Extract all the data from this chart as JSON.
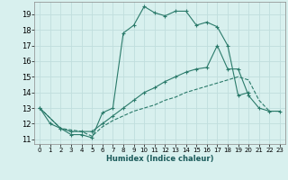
{
  "xlabel": "Humidex (Indice chaleur)",
  "bg_color": "#d8f0ee",
  "grid_color": "#c0dedd",
  "line_color": "#2a7a6a",
  "xlim": [
    -0.5,
    23.5
  ],
  "ylim": [
    10.7,
    19.8
  ],
  "yticks": [
    11,
    12,
    13,
    14,
    15,
    16,
    17,
    18,
    19
  ],
  "xticks": [
    0,
    1,
    2,
    3,
    4,
    5,
    6,
    7,
    8,
    9,
    10,
    11,
    12,
    13,
    14,
    15,
    16,
    17,
    18,
    19,
    20,
    21,
    22,
    23
  ],
  "lines": [
    {
      "x": [
        0,
        1,
        2,
        3,
        4,
        5,
        6,
        7,
        8,
        9,
        10,
        11,
        12,
        13,
        14,
        15,
        16,
        17,
        18,
        19,
        20
      ],
      "y": [
        13.0,
        12.0,
        11.7,
        11.3,
        11.3,
        11.1,
        12.7,
        13.0,
        17.8,
        18.3,
        19.5,
        19.1,
        18.9,
        19.2,
        19.2,
        18.3,
        18.5,
        18.2,
        17.0,
        13.8,
        14.0
      ],
      "style": "solid",
      "marker": true
    },
    {
      "x": [
        0,
        2,
        3,
        4,
        5,
        6,
        7,
        8,
        9,
        10,
        11,
        12,
        13,
        14,
        15,
        16,
        17,
        18,
        19,
        20,
        21,
        22,
        23
      ],
      "y": [
        13.0,
        11.7,
        11.5,
        11.5,
        11.5,
        12.0,
        12.5,
        13.0,
        13.5,
        14.0,
        14.3,
        14.7,
        15.0,
        15.3,
        15.5,
        15.6,
        17.0,
        15.5,
        15.5,
        13.8,
        13.0,
        12.8,
        12.8
      ],
      "style": "solid",
      "marker": true
    },
    {
      "x": [
        0,
        2,
        4,
        5,
        6,
        7,
        8,
        9,
        10,
        11,
        12,
        13,
        14,
        15,
        16,
        17,
        18,
        19,
        20,
        21,
        22,
        23
      ],
      "y": [
        13.0,
        11.7,
        11.5,
        11.2,
        11.8,
        12.2,
        12.5,
        12.8,
        13.0,
        13.2,
        13.5,
        13.7,
        14.0,
        14.2,
        14.4,
        14.6,
        14.8,
        15.0,
        14.8,
        13.5,
        12.8,
        12.8
      ],
      "style": "dashed",
      "marker": false
    }
  ]
}
